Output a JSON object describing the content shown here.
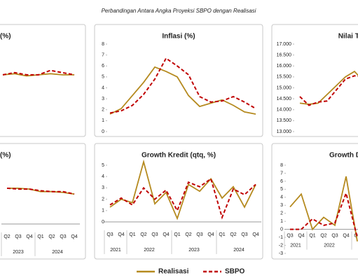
{
  "title": "Perbandingan Antara Angka Proyeksi SBPO dengan Realisasi",
  "legend": [
    {
      "name": "Realisasi",
      "color": "#b58a1f",
      "dashed": false
    },
    {
      "name": "SBPO",
      "color": "#c00000",
      "dashed": true
    }
  ],
  "chart_data": [
    {
      "type": "line",
      "title": "(%)",
      "ylim": [
        0,
        8
      ],
      "series": [
        {
          "values": [
            5.0,
            5.1,
            4.9,
            5.0,
            5.1,
            5.0,
            5.0
          ]
        },
        {
          "values": [
            5.0,
            5.2,
            5.0,
            5.0,
            5.4,
            5.2,
            5.0
          ]
        }
      ]
    },
    {
      "type": "line",
      "title": "Inflasi (%)",
      "ylim": [
        0,
        8
      ],
      "yticks": [
        0,
        1,
        2,
        3,
        4,
        5,
        6,
        7,
        8
      ],
      "series": [
        {
          "values": [
            1.6,
            2.1,
            3.3,
            4.5,
            5.9,
            5.5,
            5.0,
            3.3,
            2.3,
            2.6,
            2.9,
            2.4,
            1.8,
            1.6
          ]
        },
        {
          "values": [
            1.7,
            1.9,
            2.4,
            3.4,
            4.8,
            6.7,
            6.0,
            5.2,
            3.2,
            2.7,
            2.8,
            3.2,
            2.7,
            2.1
          ]
        }
      ]
    },
    {
      "type": "line",
      "title": "Nilai Tukar",
      "ylim": [
        13000,
        17000
      ],
      "yticks": [
        {
          "value": 13000,
          "label": "13.000"
        },
        {
          "value": 13500,
          "label": "13.500"
        },
        {
          "value": 14000,
          "label": "14.000"
        },
        {
          "value": 14500,
          "label": "14.500"
        },
        {
          "value": 15000,
          "label": "15.000"
        },
        {
          "value": 15500,
          "label": "15.500"
        },
        {
          "value": 16000,
          "label": "16.000"
        },
        {
          "value": 16500,
          "label": "16.500"
        },
        {
          "value": 17000,
          "label": "17.000"
        }
      ],
      "series": [
        {
          "values": [
            14300,
            14250,
            14300,
            14700,
            15100,
            15500,
            15750,
            15300,
            15500
          ]
        },
        {
          "values": [
            14600,
            14200,
            14350,
            14400,
            14900,
            15400,
            15550,
            15500,
            15450
          ]
        }
      ]
    },
    {
      "type": "line",
      "title": "(%)",
      "ylim": [
        0,
        8
      ],
      "categories": [
        "Q2",
        "Q3",
        "Q4",
        "Q1",
        "Q2",
        "Q3",
        "Q4"
      ],
      "years": [
        "2023",
        "2024"
      ],
      "series": [
        {
          "values": [
            4.3,
            4.3,
            4.2,
            3.9,
            3.9,
            3.8,
            3.6
          ]
        },
        {
          "values": [
            4.3,
            4.2,
            4.2,
            4.0,
            3.9,
            3.9,
            3.6
          ]
        }
      ]
    },
    {
      "type": "line",
      "title": "Growth Kredit (qtq, %)",
      "ylim": [
        0,
        5
      ],
      "yticks": [
        0,
        1,
        2,
        3,
        4,
        5
      ],
      "categories": [
        "Q3",
        "Q4",
        "Q1",
        "Q2",
        "Q3",
        "Q4",
        "Q1",
        "Q2",
        "Q3",
        "Q4",
        "Q1",
        "Q2",
        "Q3",
        "Q4"
      ],
      "years": [
        "2021",
        "2022",
        "2023",
        "2024"
      ],
      "series": [
        {
          "values": [
            1.3,
            2.0,
            1.7,
            5.3,
            1.6,
            2.6,
            0.3,
            3.3,
            2.7,
            3.8,
            2.1,
            3.1,
            1.3,
            3.3
          ]
        },
        {
          "values": [
            1.5,
            2.1,
            1.5,
            3.0,
            2.0,
            2.8,
            1.0,
            3.5,
            3.1,
            3.8,
            0.4,
            2.9,
            2.4,
            3.3
          ]
        }
      ]
    },
    {
      "type": "line",
      "title": "Growth D",
      "ylim": [
        -3,
        8
      ],
      "yticks": [
        -3,
        -2,
        -1,
        0,
        1,
        2,
        3,
        4,
        5,
        6,
        7,
        8
      ],
      "categories": [
        "Q3",
        "Q4",
        "Q1",
        "Q2",
        "Q3",
        "Q4",
        "Q1"
      ],
      "years": [
        "2021",
        "2022"
      ],
      "series": [
        {
          "values": [
            2.8,
            4.4,
            0.0,
            1.5,
            0.5,
            6.6,
            -1.5
          ]
        },
        {
          "values": [
            0.0,
            0.0,
            1.3,
            0.5,
            0.8,
            4.5,
            -1.0
          ]
        }
      ]
    }
  ]
}
